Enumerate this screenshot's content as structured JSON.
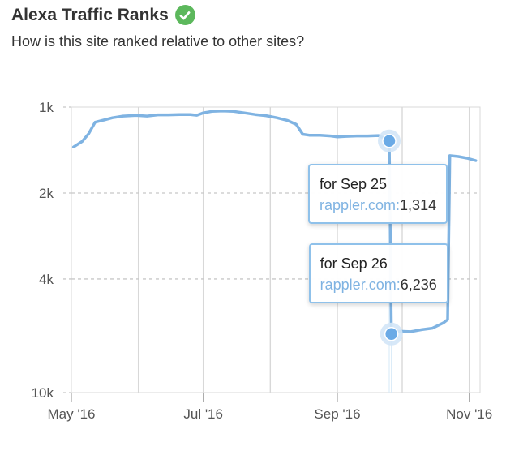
{
  "header": {
    "title": "Alexa Traffic Ranks",
    "subtitle": "How is this site ranked relative to other sites?",
    "verified_icon": "check-circle-icon"
  },
  "colors": {
    "line": "#7fb3e2",
    "point": "#6aaae6",
    "grid": "#d8d8d8",
    "tooltip_border": "#8fc1ea",
    "check": "#5cb85c"
  },
  "chart_data": {
    "type": "line",
    "title": "",
    "xlabel": "",
    "ylabel": "",
    "y_scale": "log-reversed",
    "ylim": [
      1000,
      10000
    ],
    "y_ticks": [
      {
        "value": 1000,
        "label": "1k"
      },
      {
        "value": 2000,
        "label": "2k"
      },
      {
        "value": 4000,
        "label": "4k"
      },
      {
        "value": 10000,
        "label": "10k"
      }
    ],
    "x_ticks": [
      {
        "date": "2016-05-01",
        "label": "May '16"
      },
      {
        "date": "2016-07-01",
        "label": "Jul '16"
      },
      {
        "date": "2016-09-01",
        "label": "Sep '16"
      },
      {
        "date": "2016-11-01",
        "label": "Nov '16"
      }
    ],
    "xlim": [
      "2016-05-01",
      "2016-11-06"
    ],
    "grid": true,
    "series": [
      {
        "points": [
          [
            "2016-05-02",
            1380
          ],
          [
            "2016-05-06",
            1320
          ],
          [
            "2016-05-09",
            1240
          ],
          [
            "2016-05-12",
            1130
          ],
          [
            "2016-05-16",
            1110
          ],
          [
            "2016-05-20",
            1090
          ],
          [
            "2016-05-25",
            1075
          ],
          [
            "2016-05-31",
            1070
          ],
          [
            "2016-06-05",
            1075
          ],
          [
            "2016-06-10",
            1065
          ],
          [
            "2016-06-15",
            1065
          ],
          [
            "2016-06-20",
            1063
          ],
          [
            "2016-06-25",
            1062
          ],
          [
            "2016-06-28",
            1068
          ],
          [
            "2016-07-01",
            1048
          ],
          [
            "2016-07-05",
            1035
          ],
          [
            "2016-07-10",
            1032
          ],
          [
            "2016-07-15",
            1035
          ],
          [
            "2016-07-20",
            1048
          ],
          [
            "2016-07-25",
            1062
          ],
          [
            "2016-07-30",
            1072
          ],
          [
            "2016-08-04",
            1090
          ],
          [
            "2016-08-09",
            1115
          ],
          [
            "2016-08-13",
            1150
          ],
          [
            "2016-08-16",
            1245
          ],
          [
            "2016-08-19",
            1255
          ],
          [
            "2016-08-24",
            1255
          ],
          [
            "2016-08-29",
            1262
          ],
          [
            "2016-09-01",
            1272
          ],
          [
            "2016-09-05",
            1266
          ],
          [
            "2016-09-10",
            1262
          ],
          [
            "2016-09-15",
            1262
          ],
          [
            "2016-09-20",
            1258
          ],
          [
            "2016-09-25",
            1314
          ],
          [
            "2016-09-26",
            6236
          ],
          [
            "2016-09-30",
            6100
          ],
          [
            "2016-10-05",
            6120
          ],
          [
            "2016-10-10",
            6020
          ],
          [
            "2016-10-15",
            5950
          ],
          [
            "2016-10-20",
            5700
          ],
          [
            "2016-10-22",
            5550
          ],
          [
            "2016-10-23",
            1480
          ],
          [
            "2016-10-27",
            1490
          ],
          [
            "2016-10-31",
            1510
          ],
          [
            "2016-11-04",
            1540
          ]
        ]
      }
    ],
    "highlighted_points": [
      {
        "date": "2016-09-25",
        "value": 1314
      },
      {
        "date": "2016-09-26",
        "value": 6236
      }
    ]
  },
  "tooltips": [
    {
      "date_label": "for Sep 25",
      "site": "rappler.com:",
      "value": "1,314"
    },
    {
      "date_label": "for Sep 26",
      "site": "rappler.com:",
      "value": "6,236"
    }
  ]
}
